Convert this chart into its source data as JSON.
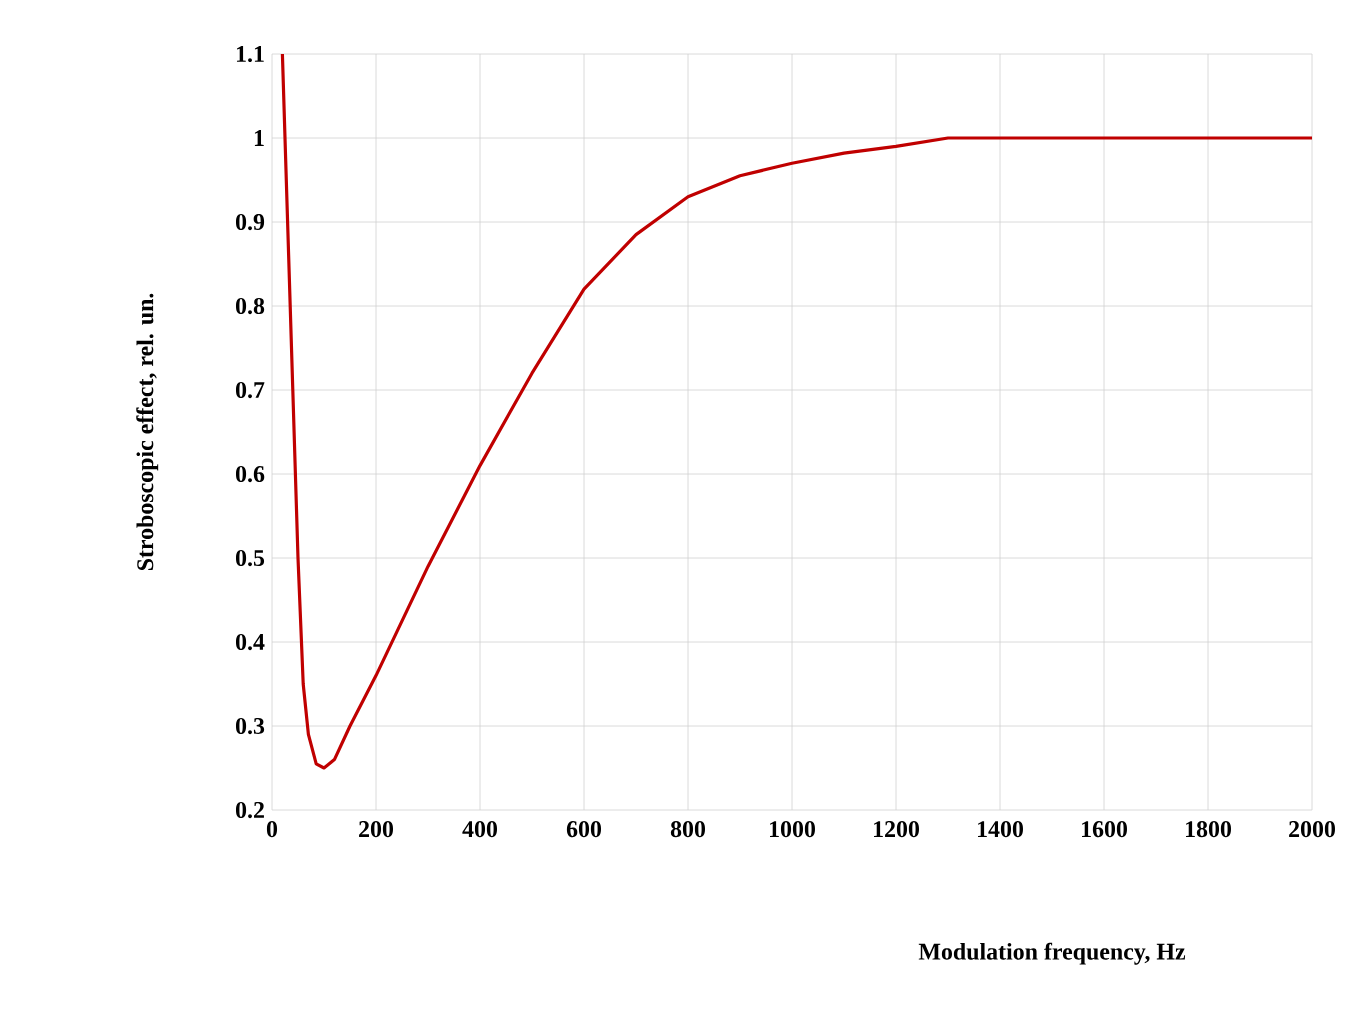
{
  "chart_data": {
    "type": "line",
    "xlabel": "Modulation frequency,  Hz",
    "ylabel": "Stroboscopic effect,  rel. un.",
    "x": [
      20,
      30,
      40,
      50,
      60,
      70,
      85,
      100,
      120,
      150,
      200,
      300,
      400,
      500,
      600,
      700,
      800,
      900,
      1000,
      1100,
      1200,
      1300,
      1400,
      2000
    ],
    "series": [
      {
        "color": "#c00000",
        "values": [
          1.1,
          0.9,
          0.7,
          0.5,
          0.35,
          0.29,
          0.255,
          0.25,
          0.26,
          0.3,
          0.36,
          0.49,
          0.61,
          0.72,
          0.82,
          0.885,
          0.93,
          0.955,
          0.97,
          0.982,
          0.99,
          1.0,
          1.0,
          1.0
        ]
      }
    ],
    "xlim": [
      0,
      2000
    ],
    "ylim": [
      0.2,
      1.1
    ],
    "xticks": [
      0,
      200,
      400,
      600,
      800,
      1000,
      1200,
      1400,
      1600,
      1800,
      2000
    ],
    "yticks": [
      0.2,
      0.3,
      0.4,
      0.5,
      0.6,
      0.7,
      0.8,
      0.9,
      1,
      1.1
    ],
    "grid": true,
    "marker": "none",
    "line_style": "solid"
  }
}
